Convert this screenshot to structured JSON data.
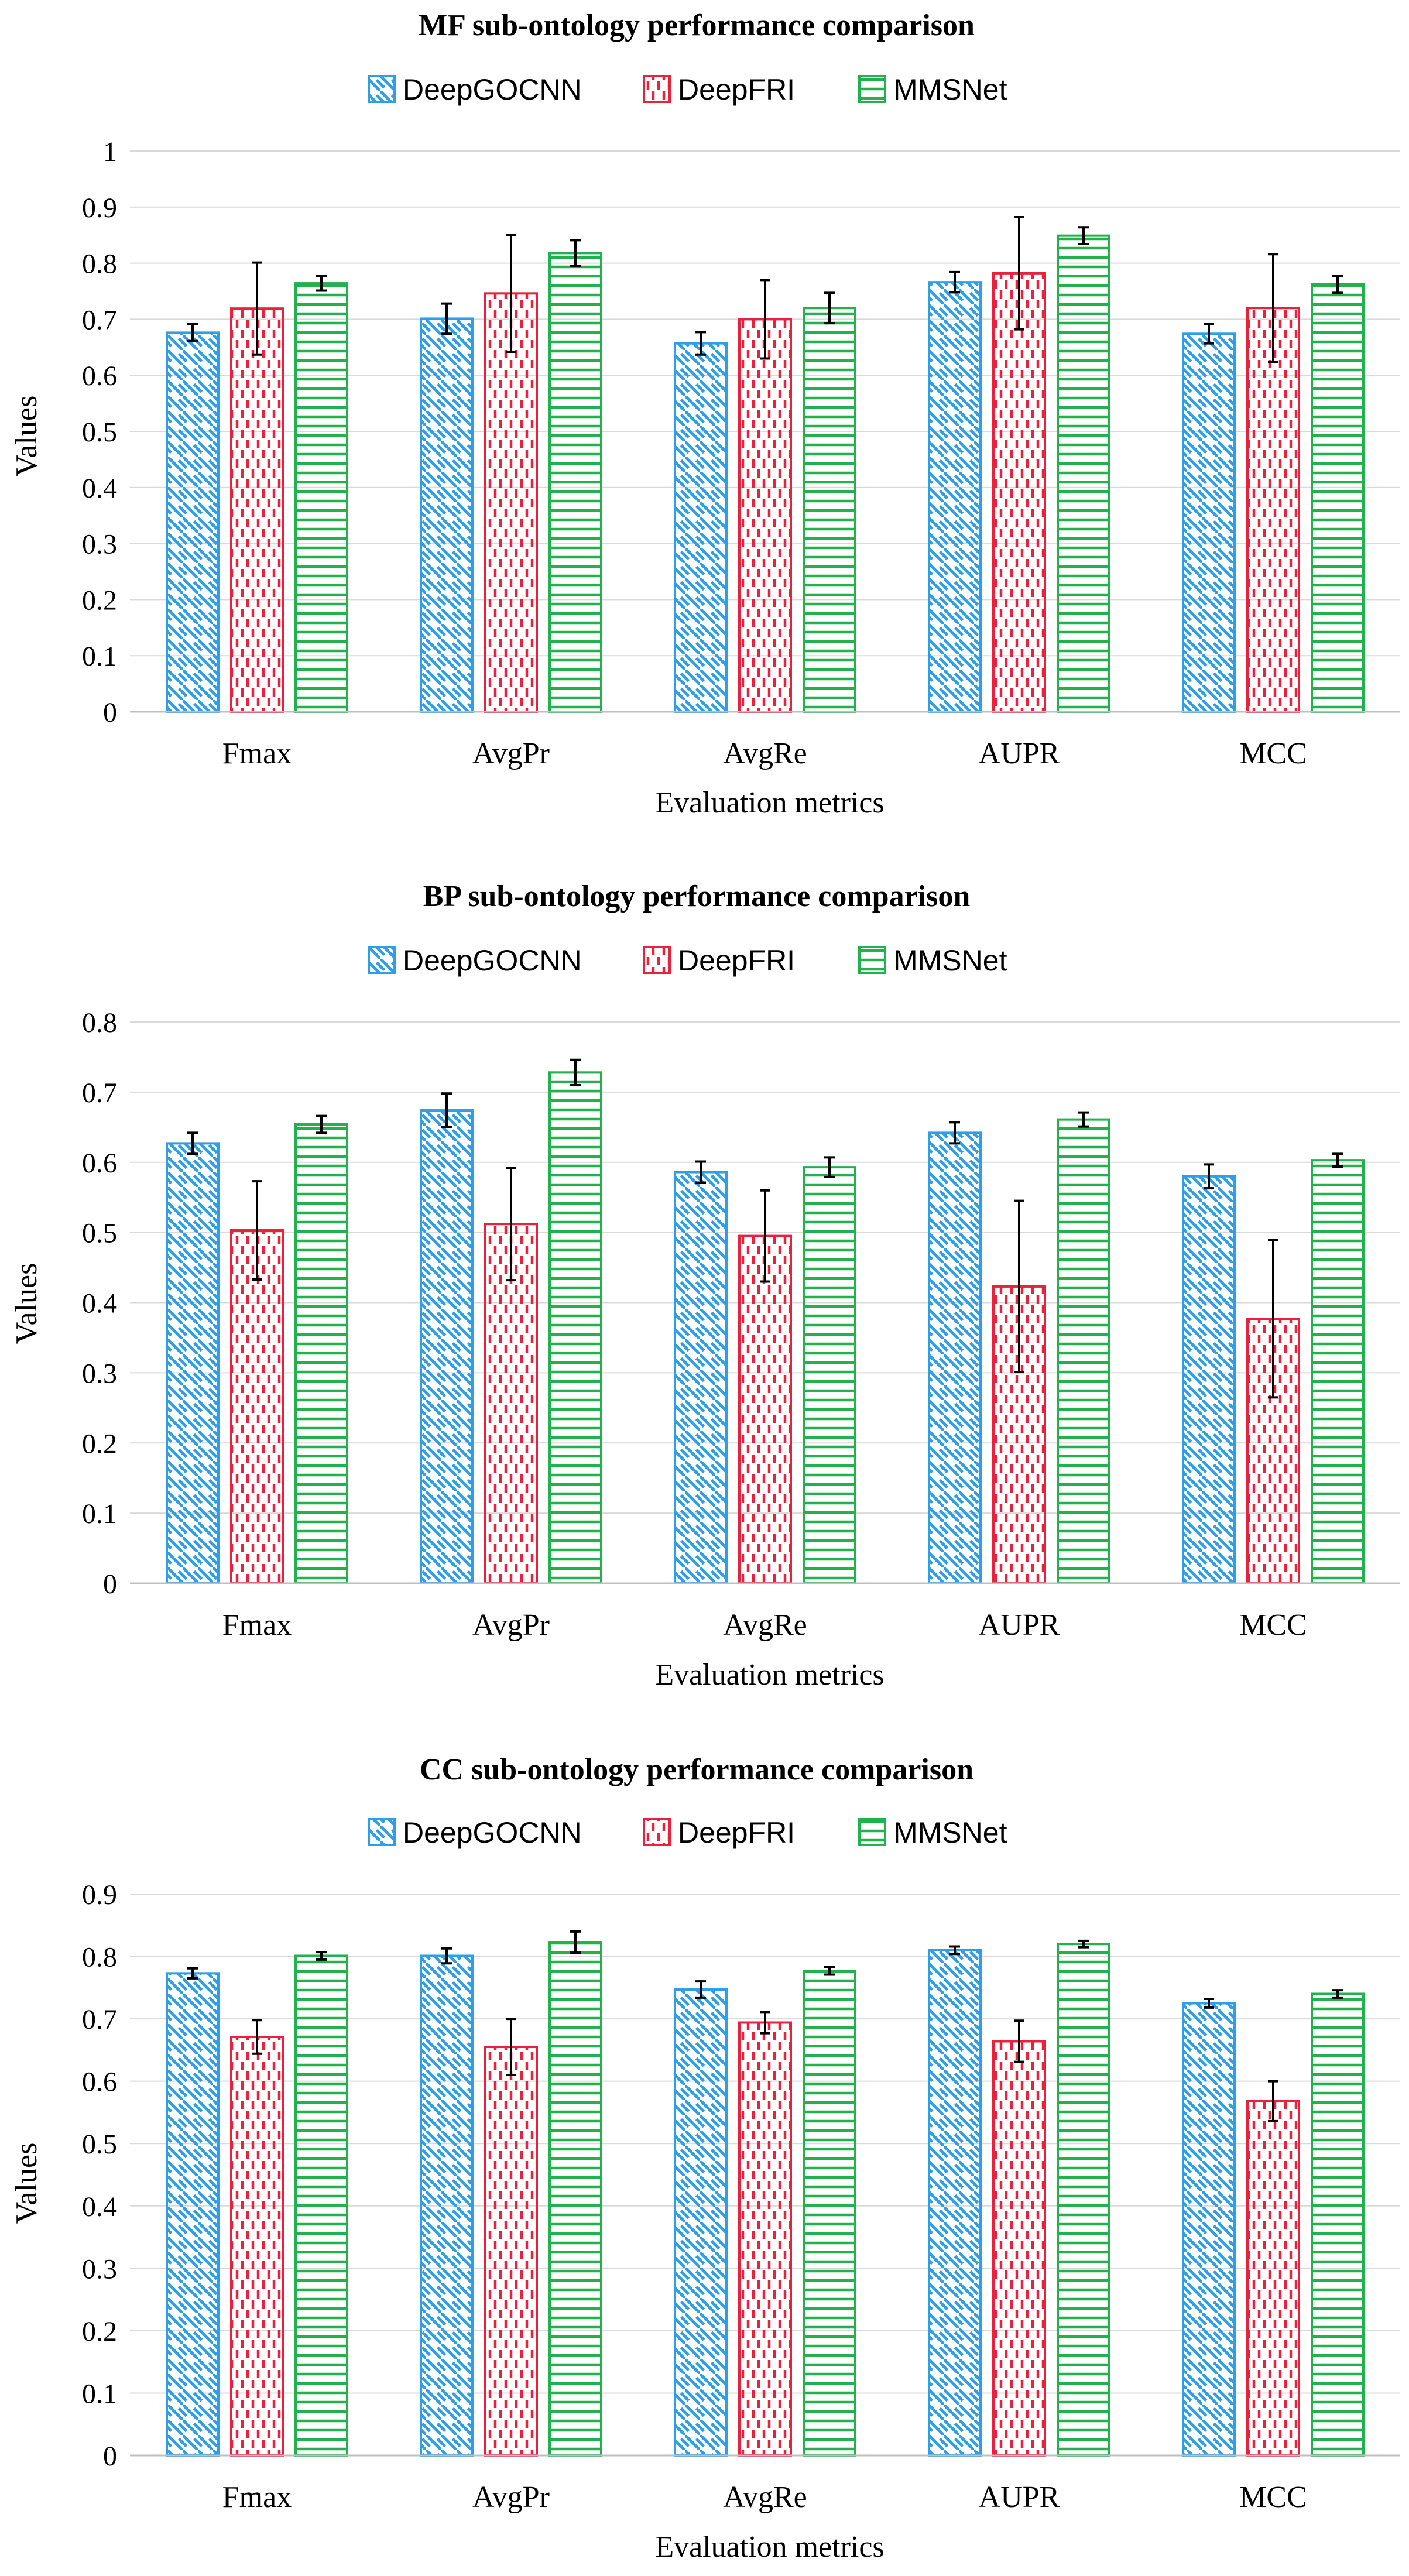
{
  "chart_data": [
    {
      "type": "bar",
      "title": "MF sub-ontology performance comparison",
      "xlabel": "Evaluation metrics",
      "ylabel": "Values",
      "ylim": [
        0,
        1
      ],
      "ystep": 0.1,
      "yticks": [
        "0",
        "0.1",
        "0.2",
        "0.3",
        "0.4",
        "0.5",
        "0.6",
        "0.7",
        "0.8",
        "0.9",
        "1"
      ],
      "grid": true,
      "legend_position": "top",
      "categories": [
        "Fmax",
        "AvgPr",
        "AvgRe",
        "AUPR",
        "MCC"
      ],
      "series": [
        {
          "name": "DeepGOCNN",
          "values": [
            0.676,
            0.701,
            0.657,
            0.766,
            0.674
          ],
          "errors": [
            0.015,
            0.027,
            0.02,
            0.018,
            0.017
          ]
        },
        {
          "name": "DeepFRI",
          "values": [
            0.719,
            0.746,
            0.7,
            0.782,
            0.72
          ],
          "errors": [
            0.082,
            0.104,
            0.07,
            0.1,
            0.096
          ]
        },
        {
          "name": "MMSNet",
          "values": [
            0.764,
            0.818,
            0.72,
            0.849,
            0.762
          ],
          "errors": [
            0.013,
            0.023,
            0.027,
            0.015,
            0.015
          ]
        }
      ]
    },
    {
      "type": "bar",
      "title": "BP sub-ontology performance comparison",
      "xlabel": "Evaluation metrics",
      "ylabel": "Values",
      "ylim": [
        0,
        0.8
      ],
      "ystep": 0.1,
      "yticks": [
        "0",
        "0.1",
        "0.2",
        "0.3",
        "0.4",
        "0.5",
        "0.6",
        "0.7",
        "0.8"
      ],
      "grid": true,
      "legend_position": "top",
      "categories": [
        "Fmax",
        "AvgPr",
        "AvgRe",
        "AUPR",
        "MCC"
      ],
      "series": [
        {
          "name": "DeepGOCNN",
          "values": [
            0.627,
            0.674,
            0.586,
            0.642,
            0.58
          ],
          "errors": [
            0.015,
            0.024,
            0.015,
            0.015,
            0.017
          ]
        },
        {
          "name": "DeepFRI",
          "values": [
            0.503,
            0.512,
            0.495,
            0.423,
            0.377
          ],
          "errors": [
            0.07,
            0.08,
            0.065,
            0.122,
            0.112
          ]
        },
        {
          "name": "MMSNet",
          "values": [
            0.654,
            0.728,
            0.593,
            0.661,
            0.603
          ],
          "errors": [
            0.012,
            0.018,
            0.014,
            0.01,
            0.009
          ]
        }
      ]
    },
    {
      "type": "bar",
      "title": "CC sub-ontology performance comparison",
      "xlabel": "Evaluation metrics",
      "ylabel": "Values",
      "ylim": [
        0,
        0.9
      ],
      "ystep": 0.1,
      "yticks": [
        "0",
        "0.1",
        "0.2",
        "0.3",
        "0.4",
        "0.5",
        "0.6",
        "0.7",
        "0.8",
        "0.9"
      ],
      "grid": true,
      "legend_position": "top",
      "categories": [
        "Fmax",
        "AvgPr",
        "AvgRe",
        "AUPR",
        "MCC"
      ],
      "series": [
        {
          "name": "DeepGOCNN",
          "values": [
            0.773,
            0.801,
            0.747,
            0.81,
            0.725
          ],
          "errors": [
            0.008,
            0.012,
            0.013,
            0.006,
            0.007
          ]
        },
        {
          "name": "DeepFRI",
          "values": [
            0.671,
            0.655,
            0.694,
            0.664,
            0.568
          ],
          "errors": [
            0.027,
            0.045,
            0.017,
            0.033,
            0.032
          ]
        },
        {
          "name": "MMSNet",
          "values": [
            0.801,
            0.823,
            0.777,
            0.82,
            0.74
          ],
          "errors": [
            0.006,
            0.017,
            0.006,
            0.005,
            0.006
          ]
        }
      ]
    }
  ],
  "colors": {
    "DeepGOCNN": "#2e9ee6",
    "DeepFRI": "#e8213c",
    "MMSNet": "#22b14c",
    "grid": "#d9d9d9",
    "axis": "#bfbfbf",
    "error_bar": "#000000"
  }
}
